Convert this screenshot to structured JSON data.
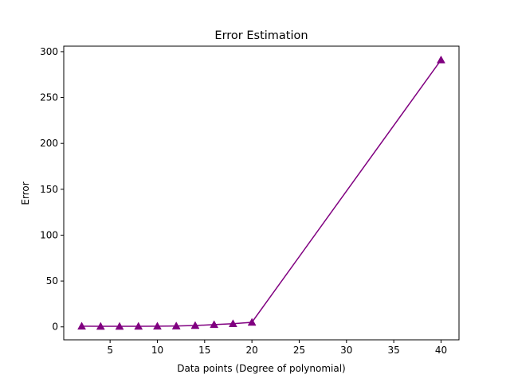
{
  "chart_data": {
    "type": "line",
    "title": "Error Estimation",
    "xlabel": "Data points (Degree of polynomial)",
    "ylabel": "Error",
    "xlim": [
      0.1,
      41.9
    ],
    "ylim": [
      -14.1,
      306.0
    ],
    "xticks": [
      5,
      10,
      15,
      20,
      25,
      30,
      35,
      40
    ],
    "yticks": [
      0,
      50,
      100,
      150,
      200,
      250,
      300
    ],
    "grid": false,
    "legend": "none",
    "series": [
      {
        "color": "#800080",
        "marker": "triangle-up",
        "x": [
          2,
          4,
          6,
          8,
          10,
          12,
          14,
          16,
          18,
          20,
          40
        ],
        "y": [
          0.8,
          0.6,
          0.6,
          0.7,
          0.8,
          1.0,
          1.5,
          2.5,
          3.5,
          5.0,
          291.0
        ]
      }
    ]
  }
}
